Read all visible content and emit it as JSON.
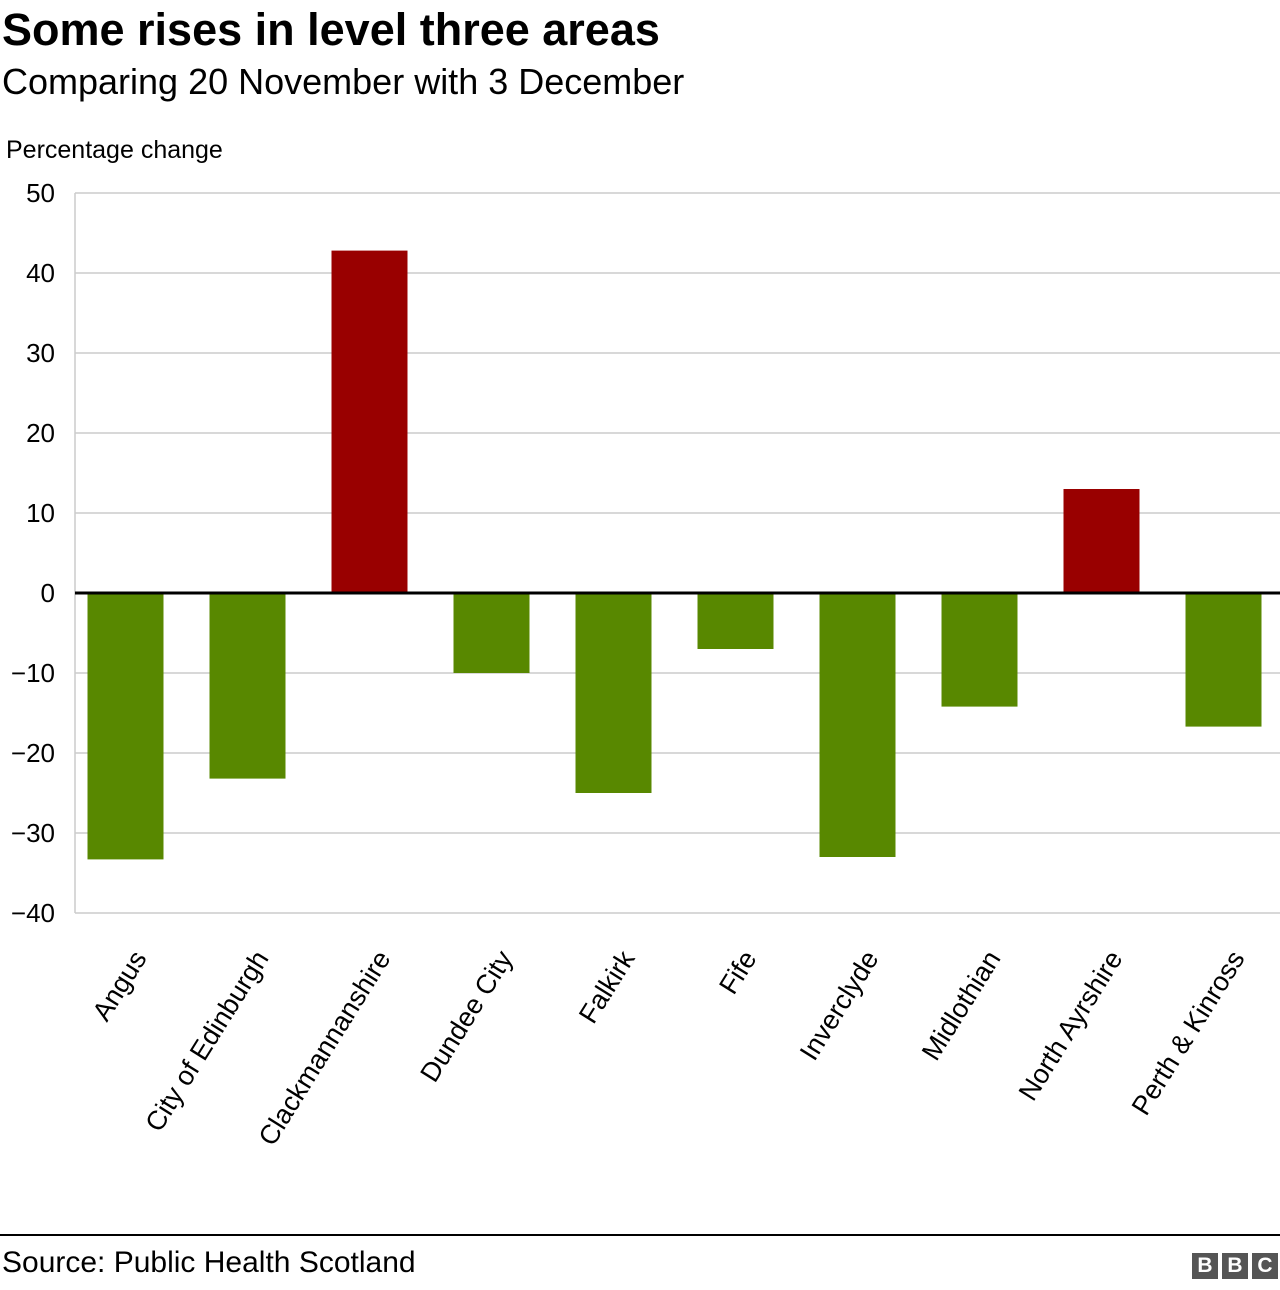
{
  "header": {
    "title": "Some rises in level three areas",
    "subtitle": "Comparing 20 November with 3 December"
  },
  "footer": {
    "source": "Source: Public Health Scotland",
    "logo_letters": [
      "B",
      "B",
      "C"
    ]
  },
  "colors": {
    "increase": "#990000",
    "decrease": "#588800",
    "grid": "#cccccc",
    "zero_line": "#000000",
    "logo_bg": "#555555"
  },
  "chart_data": {
    "type": "bar",
    "title": "Some rises in level three areas",
    "subtitle": "Comparing 20 November with 3 December",
    "xlabel": "",
    "ylabel": "Percentage change",
    "ylim": [
      -40,
      50
    ],
    "yticks": [
      50,
      40,
      30,
      20,
      10,
      0,
      -10,
      -20,
      -30,
      -40
    ],
    "ytick_labels": [
      "50",
      "40",
      "30",
      "20",
      "10",
      "0",
      "−10",
      "−20",
      "−30",
      "−40"
    ],
    "grid": true,
    "legend": "none",
    "categories": [
      "Angus",
      "City of Edinburgh",
      "Clackmannanshire",
      "Dundee City",
      "Falkirk",
      "Fife",
      "Inverclyde",
      "Midlothian",
      "North Ayrshire",
      "Perth & Kinross"
    ],
    "values": [
      -33.3,
      -23.2,
      42.8,
      -10.0,
      -25.0,
      -7.0,
      -33.0,
      -14.2,
      13.0,
      -16.7
    ]
  }
}
